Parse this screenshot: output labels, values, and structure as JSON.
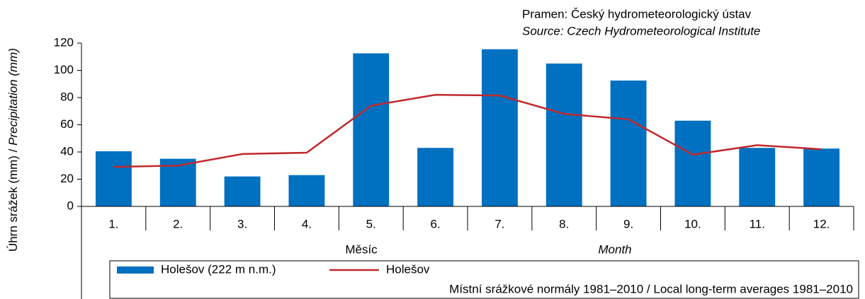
{
  "source_cz": "Pramen: Český hydrometeorologický ústav",
  "source_en": "Source: Czech Hydrometeorological Institute",
  "note": "Místní srážkové normály 1981–2010 / Local long-term averages 1981–2010",
  "chart_data": {
    "type": "bar_line",
    "ylabel": {
      "cz": "Úhrn srážek (mm) / ",
      "en": "Precipitation (mm)"
    },
    "xlabel": {
      "cz": "Měsíc",
      "en": "Month"
    },
    "categories": [
      "1.",
      "2.",
      "3.",
      "4.",
      "5.",
      "6.",
      "7.",
      "8.",
      "9.",
      "10.",
      "11.",
      "12."
    ],
    "series": [
      {
        "name": "Holešov (222 m n.m.)",
        "type": "bar",
        "color": "#0070c0",
        "values": [
          40.5,
          35,
          22,
          23,
          112.5,
          43,
          115.5,
          105,
          92.5,
          63,
          43,
          42.5
        ]
      },
      {
        "name": "Holešov",
        "type": "line",
        "color": "#c0282d",
        "values": [
          29,
          30,
          38.5,
          39.5,
          74,
          82,
          81.5,
          68,
          64,
          38,
          45,
          42
        ]
      }
    ],
    "ylim": [
      0,
      120
    ],
    "yticks": [
      0,
      20,
      40,
      60,
      80,
      100,
      120
    ]
  }
}
